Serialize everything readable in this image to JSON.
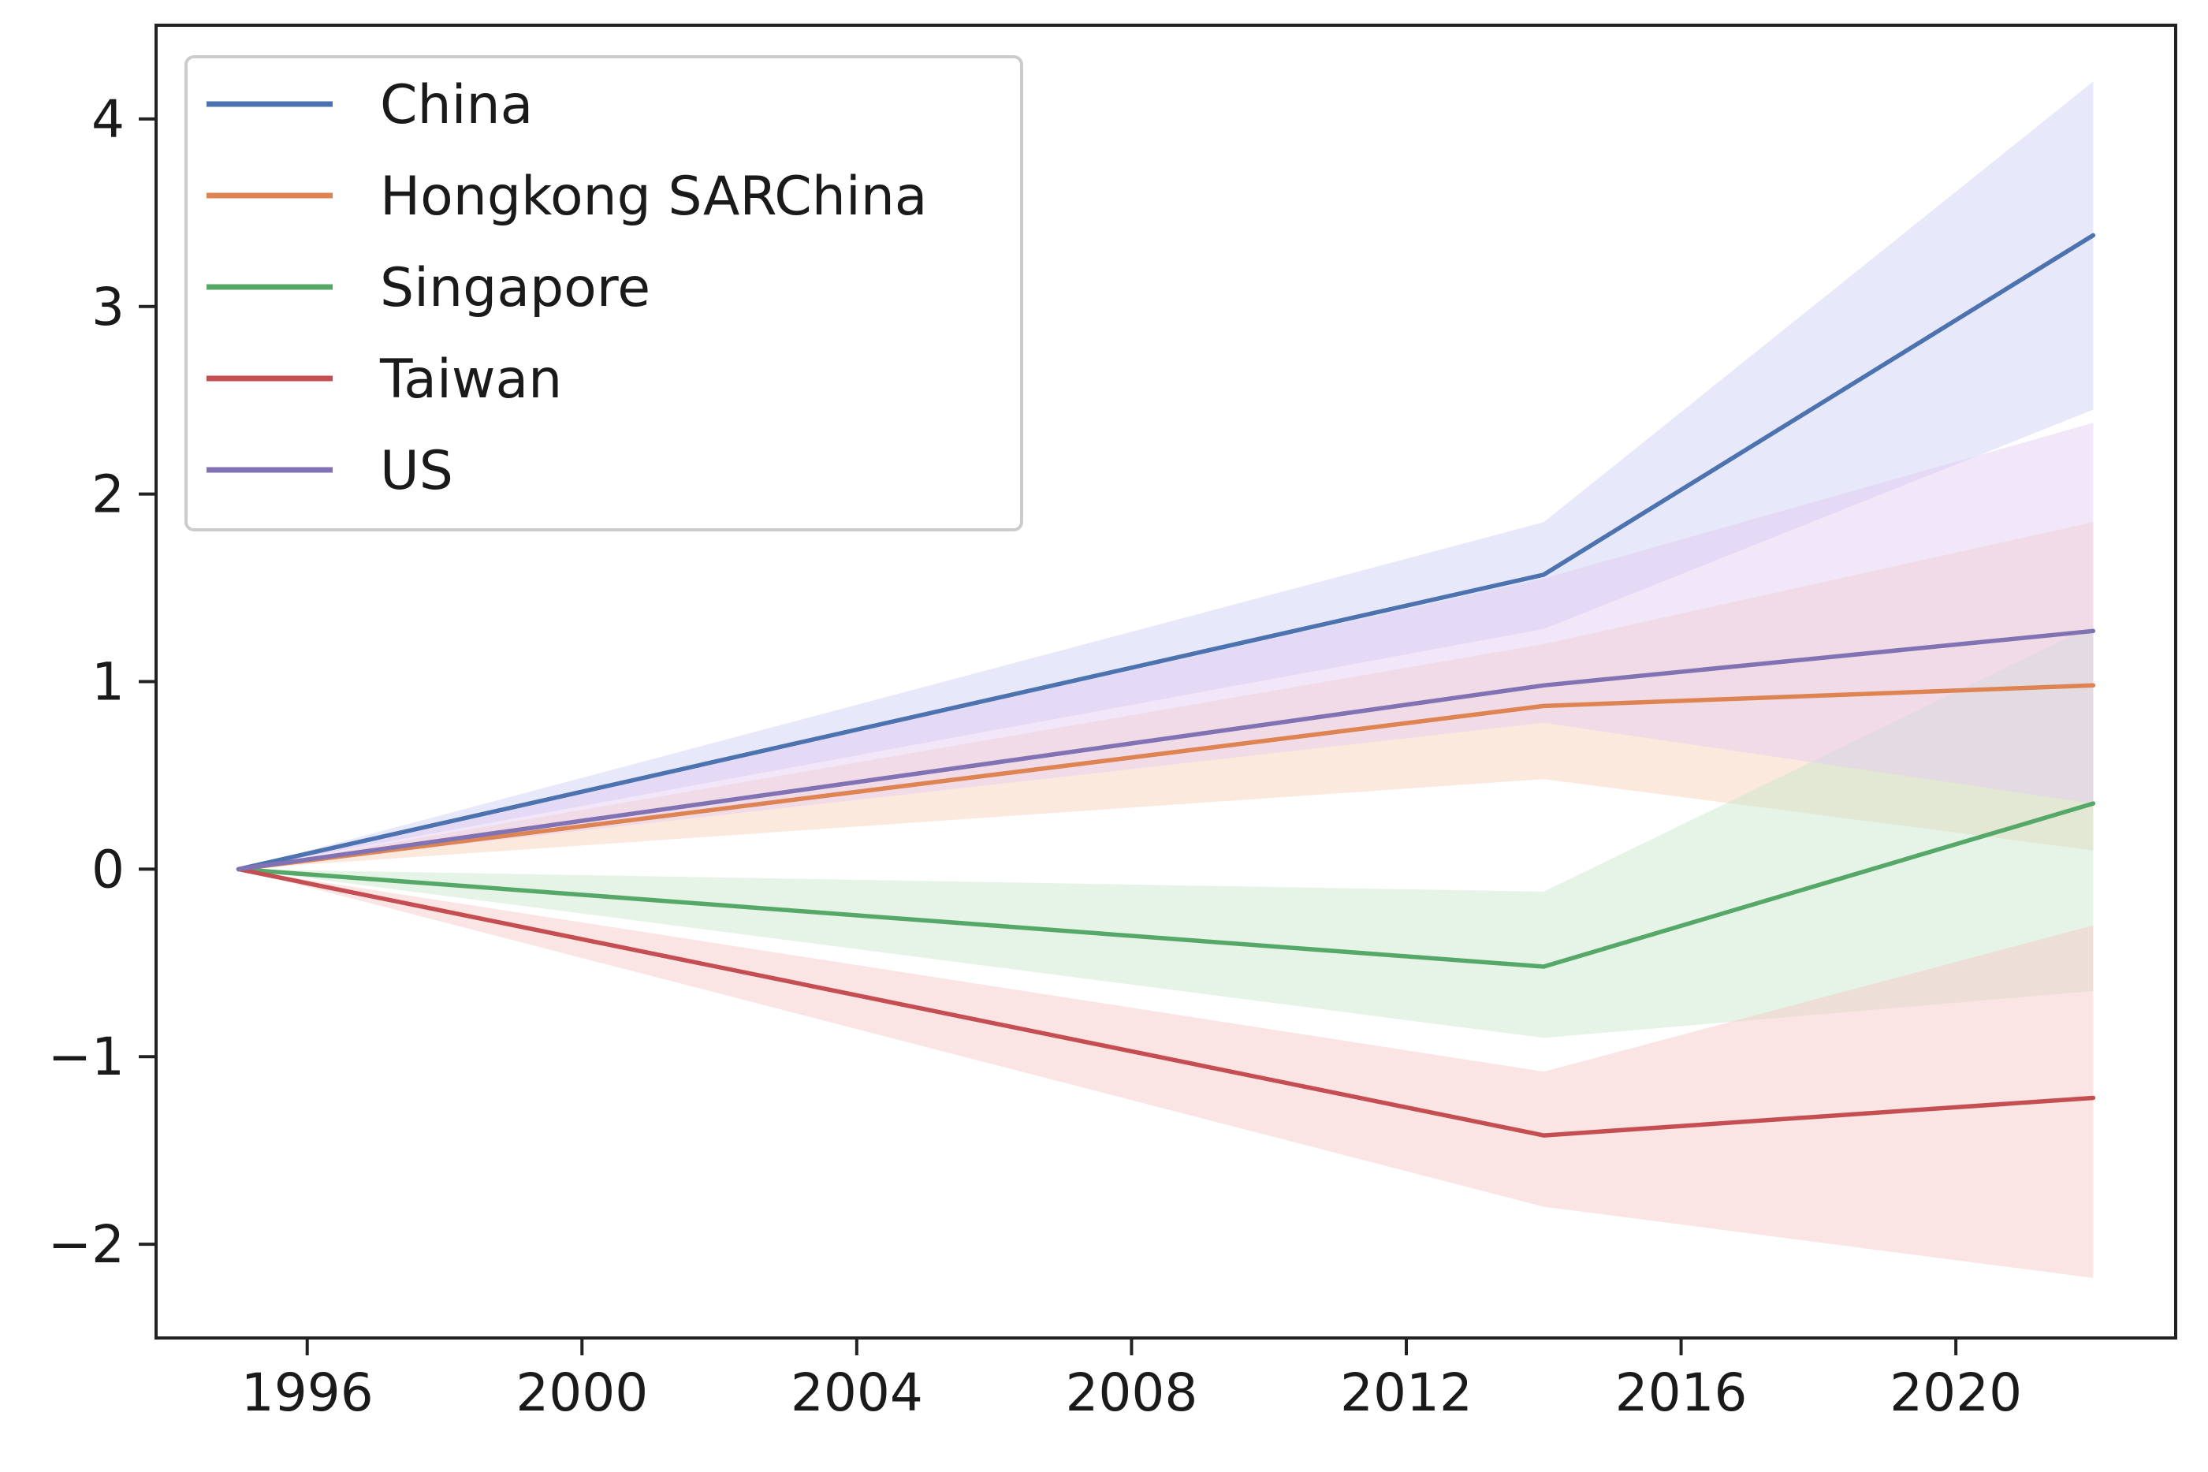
{
  "chart_data": {
    "type": "line",
    "title": "",
    "xlabel": "",
    "ylabel": "",
    "xlim": [
      1993.8,
      2023.2
    ],
    "ylim": [
      -2.5,
      4.5
    ],
    "x_ticks": [
      1996,
      2000,
      2004,
      2008,
      2012,
      2016,
      2020
    ],
    "y_ticks": [
      -2,
      -1,
      0,
      1,
      2,
      3,
      4
    ],
    "grid": false,
    "legend_position": "top-left",
    "x": [
      1995,
      2014,
      2022
    ],
    "series": [
      {
        "name": "China",
        "color": "#4c72b0",
        "values": [
          0,
          1.57,
          3.38
        ],
        "band_lower": [
          0,
          1.28,
          2.45
        ],
        "band_upper": [
          0,
          1.85,
          4.2
        ],
        "band_color": "#c9cdf2"
      },
      {
        "name": "Hongkong SARChina",
        "color": "#dd8452",
        "values": [
          0,
          0.87,
          0.98
        ],
        "band_lower": [
          0,
          0.48,
          0.1
        ],
        "band_upper": [
          0,
          1.2,
          1.85
        ],
        "band_color": "#f6cfb5"
      },
      {
        "name": "Singapore",
        "color": "#55a868",
        "values": [
          0,
          -0.52,
          0.35
        ],
        "band_lower": [
          0,
          -0.9,
          -0.65
        ],
        "band_upper": [
          0,
          -0.12,
          1.3
        ],
        "band_color": "#c6e6c9"
      },
      {
        "name": "Taiwan",
        "color": "#c44e52",
        "values": [
          0,
          -1.42,
          -1.22
        ],
        "band_lower": [
          0,
          -1.8,
          -2.18
        ],
        "band_upper": [
          0,
          -1.08,
          -0.3
        ],
        "band_color": "#f6c4c4"
      },
      {
        "name": "US",
        "color": "#8172b3",
        "values": [
          0,
          0.98,
          1.27
        ],
        "band_lower": [
          0,
          0.78,
          0.35
        ],
        "band_upper": [
          0,
          1.55,
          2.38
        ],
        "band_color": "#e2c9f2"
      }
    ]
  }
}
